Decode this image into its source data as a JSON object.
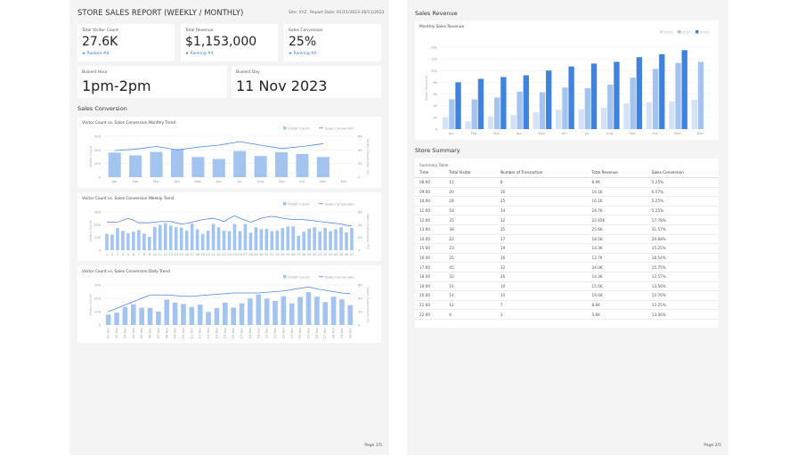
{
  "page1": {
    "title": "STORE SALES REPORT (WEEKLY / MONTHLY)",
    "site": "Site: XYZ",
    "report_date": "Report Date: 01/11/2023-30/11/2023",
    "kpis": [
      {
        "label": "Total Visitor Count",
        "value": "27.6K",
        "rank": "Ranked #8"
      },
      {
        "label": "Total Revenue",
        "value": "$1,153,000",
        "rank": "Ranking #4"
      },
      {
        "label": "Sales Conversion",
        "value": "25%",
        "rank": "Ranking #6"
      }
    ],
    "busiest": [
      {
        "label": "Busiest Hour",
        "value": "1pm-2pm"
      },
      {
        "label": "Busiest Day",
        "value": "11 Nov 2023"
      }
    ],
    "section": "Sales Conversion",
    "page_label": "Page 1/5"
  },
  "page2": {
    "section1": "Sales Revenue",
    "section2": "Store Summary",
    "table": {
      "title": "Summary Table",
      "columns": [
        "Time",
        "Total Visitor",
        "Number of Transaction",
        "Total Revenue",
        "Sales Conversion"
      ],
      "rows": [
        [
          "08:00",
          "12",
          "8",
          "8.9K",
          "5.25%"
        ],
        [
          "09:00",
          "20",
          "16",
          "16.1K",
          "6.57%"
        ],
        [
          "10:00",
          "28",
          "25",
          "16.1K",
          "5.25%"
        ],
        [
          "11:00",
          "18",
          "14",
          "24.7K",
          "5.25%"
        ],
        [
          "12:00",
          "35",
          "32",
          "22.65K",
          "17.78%"
        ],
        [
          "13:00",
          "38",
          "35",
          "25.6K",
          "31.57%"
        ],
        [
          "14:00",
          "22",
          "17",
          "18.5K",
          "20.68%"
        ],
        [
          "15:00",
          "23",
          "19",
          "14.3K",
          "15.25%"
        ],
        [
          "16:00",
          "25",
          "16",
          "12.7K",
          "18.54%"
        ],
        [
          "17:00",
          "45",
          "32",
          "34.0K",
          "15.75%"
        ],
        [
          "18:00",
          "32",
          "26",
          "14.3K",
          "12.57%"
        ],
        [
          "19:00",
          "16",
          "10",
          "15.5K",
          "13.56%"
        ],
        [
          "20:00",
          "14",
          "10",
          "19.6K",
          "12.76%"
        ],
        [
          "21:00",
          "12",
          "7",
          "8.6K",
          "12.25%"
        ],
        [
          "22:00",
          "6",
          "3",
          "5.6K",
          "13.36%"
        ]
      ]
    },
    "page_label": "Page 2/5"
  },
  "colors": {
    "bar": "#a4c4f0",
    "line": "#4a86e0",
    "y2021": "#d3e2f7",
    "y2022": "#a4c4f0",
    "y2023": "#3f83df"
  },
  "chart_data": [
    {
      "type": "bar+line",
      "title": "Visitor Count vs. Sales Conversion Monthly Trend",
      "categories": [
        "Jan",
        "Feb",
        "Mar",
        "Apr",
        "May",
        "Jun",
        "Jul",
        "Aug",
        "Sep",
        "Oct",
        "Nov",
        "Dec"
      ],
      "series": [
        {
          "name": "Visitor Count",
          "type": "bar",
          "axis": "left",
          "values": [
            180,
            160,
            185,
            205,
            148,
            133,
            192,
            155,
            183,
            170,
            148,
            null
          ]
        },
        {
          "name": "Sales Conversion",
          "type": "line",
          "axis": "right",
          "values": [
            39,
            41,
            45,
            40,
            44,
            47,
            52,
            47,
            42,
            45,
            49,
            null
          ]
        }
      ],
      "ylabel": "Visitor Count",
      "y2label": "Sales Conversion (%)",
      "ylim": [
        0,
        300
      ],
      "y2lim": [
        0,
        60
      ],
      "yticks": [
        0,
        100,
        200,
        300
      ],
      "y2ticks": [
        0,
        20,
        40,
        60
      ],
      "legend": "top-right",
      "grid": true
    },
    {
      "type": "bar+line",
      "title": "Visitor Count vs. Sales Conversion Weekly Trend",
      "categories": [
        "1",
        "2",
        "3",
        "4",
        "5",
        "6",
        "7",
        "8",
        "9",
        "10",
        "11",
        "12",
        "13",
        "14",
        "15",
        "16",
        "17",
        "18",
        "19",
        "20",
        "21",
        "22",
        "23",
        "24",
        "25",
        "26",
        "27",
        "28",
        "29",
        "30",
        "31",
        "32",
        "33",
        "34",
        "35",
        "36",
        "37",
        "38",
        "39",
        "40",
        "41",
        "42",
        "43",
        "44",
        "45",
        "46",
        "47"
      ],
      "series": [
        {
          "name": "Visitor Count",
          "type": "bar",
          "axis": "left",
          "values": [
            128,
            122,
            173,
            152,
            133,
            145,
            158,
            130,
            105,
            182,
            197,
            213,
            193,
            180,
            177,
            153,
            208,
            163,
            127,
            153,
            205,
            180,
            153,
            150,
            205,
            150,
            205,
            137,
            180,
            165,
            167,
            150,
            153,
            173,
            185,
            187,
            113,
            145,
            170,
            180,
            147,
            175,
            150,
            165,
            180,
            140,
            175
          ]
        },
        {
          "name": "Sales Conversion",
          "type": "line",
          "axis": "right",
          "values": [
            44,
            44,
            44,
            47,
            50,
            47,
            43,
            43,
            43,
            44,
            45,
            45,
            45,
            43,
            41,
            42,
            44,
            46,
            48,
            49,
            50,
            48,
            45,
            50,
            54,
            50,
            47,
            44,
            47,
            50,
            52,
            53,
            52,
            50,
            49,
            48,
            48,
            48,
            47,
            46,
            45,
            44,
            43,
            42,
            41,
            39,
            38
          ]
        }
      ],
      "ylabel": "Visitor Count",
      "y2label": "Sales Conversion (%)",
      "ylim": [
        0,
        300
      ],
      "y2lim": [
        0,
        60
      ],
      "yticks": [
        0,
        100,
        200,
        300
      ],
      "y2ticks": [
        0,
        20,
        40,
        60
      ],
      "legend": "top-right",
      "grid": true
    },
    {
      "type": "bar+line",
      "title": "Visitor Count vs. Sales Conversion Daily Trend",
      "categories": [
        "01 Nov",
        "02 Nov",
        "03 Nov",
        "04 Nov",
        "05 Nov",
        "06 Nov",
        "07 Nov",
        "08 Nov",
        "09 Nov",
        "10 Nov",
        "11 Nov",
        "12 Nov",
        "13 Nov",
        "14 Nov",
        "15 Nov",
        "16 Nov",
        "17 Nov",
        "18 Nov",
        "19 Nov",
        "20 Nov",
        "21 Nov",
        "22 Nov",
        "23 Nov",
        "24 Nov",
        "25 Nov",
        "26 Nov",
        "27 Nov",
        "28 Nov",
        "29 Nov",
        "30 Nov"
      ],
      "series": [
        {
          "name": "Visitor Count",
          "type": "bar",
          "axis": "left",
          "values": [
            78,
            92,
            135,
            155,
            130,
            128,
            100,
            190,
            168,
            158,
            135,
            153,
            97,
            127,
            168,
            130,
            162,
            198,
            228,
            198,
            180,
            215,
            162,
            210,
            245,
            212,
            172,
            212,
            192,
            148
          ]
        },
        {
          "name": "Sales Conversion",
          "type": "line",
          "axis": "right",
          "values": [
            20,
            25,
            30,
            35,
            40,
            45,
            45,
            45,
            44,
            43,
            43,
            44,
            45,
            46,
            47,
            48,
            48,
            48,
            48,
            49,
            50,
            51,
            53,
            55,
            57,
            54,
            52,
            50,
            48,
            47
          ]
        }
      ],
      "ylabel": "Visitor Count",
      "y2label": "Sales Conversion (%)",
      "ylim": [
        0,
        300
      ],
      "y2lim": [
        0,
        60
      ],
      "yticks": [
        0,
        100,
        200,
        300
      ],
      "y2ticks": [
        0,
        20,
        40,
        60
      ],
      "legend": "top-right",
      "grid": true
    },
    {
      "type": "bar",
      "title": "Monthly Sales Revenue",
      "categories": [
        "Jan",
        "Feb",
        "Mar",
        "Apr",
        "May",
        "Jun",
        "Jul",
        "Aug",
        "Sep",
        "Oct",
        "Nov",
        "Dec"
      ],
      "series": [
        {
          "name": "2021",
          "values": [
            2.0,
            1.3,
            2.2,
            2.4,
            2.9,
            3.3,
            3.4,
            3.7,
            4.4,
            4.6,
            4.7,
            5.0
          ]
        },
        {
          "name": "2022",
          "values": [
            5.1,
            5.1,
            5.4,
            6.4,
            6.3,
            7.1,
            7.0,
            7.6,
            8.8,
            10.3,
            11.3,
            11.5
          ]
        },
        {
          "name": "2023",
          "values": [
            8.0,
            8.6,
            8.9,
            9.2,
            10.0,
            10.7,
            11.2,
            11.5,
            12.3,
            12.8,
            13.5,
            null
          ]
        }
      ],
      "ylabel": "Sales Revenue",
      "ylim": [
        0,
        14
      ],
      "yticks": [
        "0",
        "2k",
        "4k",
        "6k",
        "8k",
        "10k",
        "12k",
        "14k"
      ],
      "legend": "top-right",
      "grid": true
    }
  ]
}
